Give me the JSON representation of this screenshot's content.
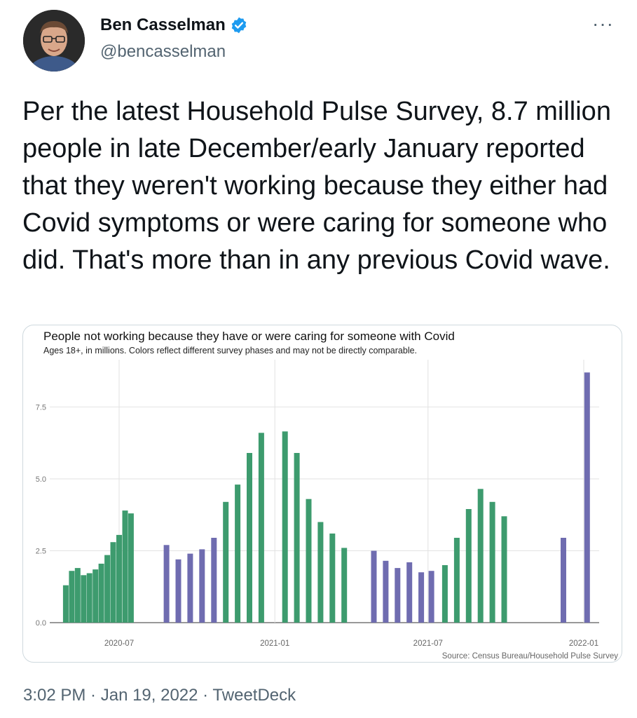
{
  "user": {
    "name": "Ben Casselman",
    "handle": "@bencasselman",
    "verified_icon": "verified-badge-icon",
    "avatar_icon": "avatar-photo"
  },
  "menu": {
    "more_label": "···"
  },
  "tweet": {
    "text": "Per the latest Household Pulse Survey, 8.7 million people in late December/early January reported that they weren't working because they either had Covid symptoms or were caring for someone who did. That's more than in any previous Covid wave."
  },
  "meta": {
    "time": "3:02 PM",
    "sep1": " · ",
    "date": "Jan 19, 2022",
    "sep2": " · ",
    "source": "TweetDeck"
  },
  "colors": {
    "green": "#3d9b6e",
    "purple": "#6f6cb0",
    "verified": "#1d9bf0"
  },
  "chart_data": {
    "type": "bar",
    "title": "People not working because they have or were caring for someone with Covid",
    "subtitle": "Ages 18+, in millions. Colors reflect different survey phases and may not be directly comparable.",
    "source": "Source: Census Bureau/Household Pulse Survey",
    "ylim": [
      0,
      8.9
    ],
    "yticks": [
      "0.0",
      "2.5",
      "5.0",
      "7.5"
    ],
    "ytick_values": [
      0,
      2.5,
      5.0,
      7.5
    ],
    "xticks": [
      "2020-07",
      "2021-01",
      "2021-07",
      "2022-01"
    ],
    "xtick_dates": [
      "2020-07-01",
      "2021-01-01",
      "2021-07-01",
      "2022-01-01"
    ],
    "grid": true,
    "series": [
      {
        "color": "green",
        "points": [
          {
            "date": "2020-04-29",
            "value": 1.3
          },
          {
            "date": "2020-05-06",
            "value": 1.8
          },
          {
            "date": "2020-05-13",
            "value": 1.9
          },
          {
            "date": "2020-05-20",
            "value": 1.65
          },
          {
            "date": "2020-05-27",
            "value": 1.72
          },
          {
            "date": "2020-06-03",
            "value": 1.85
          },
          {
            "date": "2020-06-10",
            "value": 2.05
          },
          {
            "date": "2020-06-17",
            "value": 2.35
          },
          {
            "date": "2020-06-24",
            "value": 2.8
          },
          {
            "date": "2020-07-01",
            "value": 3.05
          },
          {
            "date": "2020-07-08",
            "value": 3.9
          },
          {
            "date": "2020-07-15",
            "value": 3.8
          }
        ]
      },
      {
        "color": "purple",
        "points": [
          {
            "date": "2020-08-26",
            "value": 2.7
          },
          {
            "date": "2020-09-09",
            "value": 2.2
          },
          {
            "date": "2020-09-23",
            "value": 2.4
          },
          {
            "date": "2020-10-07",
            "value": 2.55
          },
          {
            "date": "2020-10-21",
            "value": 2.95
          }
        ]
      },
      {
        "color": "green",
        "points": [
          {
            "date": "2020-11-04",
            "value": 4.2
          },
          {
            "date": "2020-11-18",
            "value": 4.8
          },
          {
            "date": "2020-12-02",
            "value": 5.9
          },
          {
            "date": "2020-12-16",
            "value": 6.6
          },
          {
            "date": "2021-01-13",
            "value": 6.65
          },
          {
            "date": "2021-01-27",
            "value": 5.9
          },
          {
            "date": "2021-02-10",
            "value": 4.3
          },
          {
            "date": "2021-02-24",
            "value": 3.5
          },
          {
            "date": "2021-03-10",
            "value": 3.1
          },
          {
            "date": "2021-03-24",
            "value": 2.6
          }
        ]
      },
      {
        "color": "purple",
        "points": [
          {
            "date": "2021-04-28",
            "value": 2.5
          },
          {
            "date": "2021-05-12",
            "value": 2.15
          },
          {
            "date": "2021-05-26",
            "value": 1.9
          },
          {
            "date": "2021-06-09",
            "value": 2.1
          },
          {
            "date": "2021-06-23",
            "value": 1.75
          },
          {
            "date": "2021-07-05",
            "value": 1.8
          }
        ]
      },
      {
        "color": "green",
        "points": [
          {
            "date": "2021-07-21",
            "value": 2.0
          },
          {
            "date": "2021-08-04",
            "value": 2.95
          },
          {
            "date": "2021-08-18",
            "value": 3.95
          },
          {
            "date": "2021-09-01",
            "value": 4.65
          },
          {
            "date": "2021-09-15",
            "value": 4.2
          },
          {
            "date": "2021-09-29",
            "value": 3.7
          }
        ]
      },
      {
        "color": "purple",
        "points": [
          {
            "date": "2021-12-08",
            "value": 2.95
          },
          {
            "date": "2022-01-05",
            "value": 8.7
          }
        ]
      }
    ]
  }
}
